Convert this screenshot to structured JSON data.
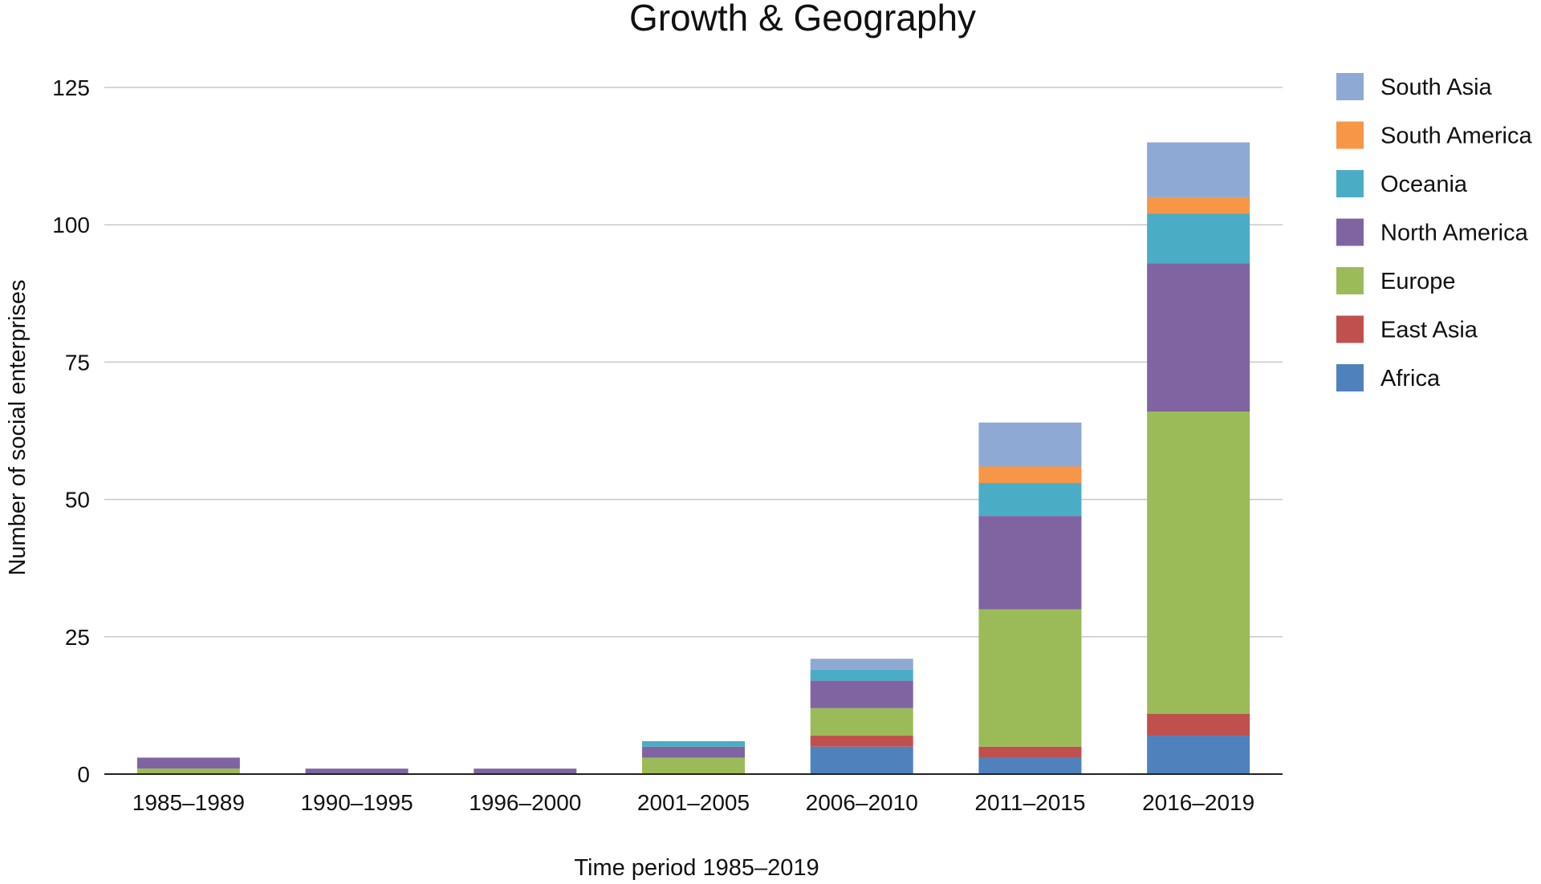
{
  "chart_data": {
    "type": "bar",
    "stacked": true,
    "title": "Growth & Geography",
    "xlabel": "Time period 1985–2019",
    "ylabel": "Number of social enterprises",
    "ylim": [
      0,
      125
    ],
    "yticks": [
      0,
      25,
      50,
      75,
      100,
      125
    ],
    "grid": true,
    "legend_position": "right",
    "categories": [
      "1985–1989",
      "1990–1995",
      "1996–2000",
      "2001–2005",
      "2006–2010",
      "2011–2015",
      "2016–2019"
    ],
    "series": [
      {
        "name": "Africa",
        "color": "#4F81BD",
        "values": [
          0,
          0,
          0,
          0,
          5,
          3,
          7
        ]
      },
      {
        "name": "East Asia",
        "color": "#C0504D",
        "values": [
          0,
          0,
          0,
          0,
          2,
          2,
          4
        ]
      },
      {
        "name": "Europe",
        "color": "#9BBB59",
        "values": [
          1,
          0,
          0,
          3,
          5,
          25,
          55
        ]
      },
      {
        "name": "North America",
        "color": "#8064A2",
        "values": [
          2,
          1,
          1,
          2,
          5,
          17,
          27
        ]
      },
      {
        "name": "Oceania",
        "color": "#4BACC6",
        "values": [
          0,
          0,
          0,
          1,
          2,
          6,
          9
        ]
      },
      {
        "name": "South America",
        "color": "#F79646",
        "values": [
          0,
          0,
          0,
          0,
          0,
          3,
          3
        ]
      },
      {
        "name": "South Asia",
        "color": "#8EA9D3",
        "values": [
          0,
          0,
          0,
          0,
          2,
          8,
          10
        ]
      }
    ],
    "legend_order": [
      "South Asia",
      "South America",
      "Oceania",
      "North America",
      "Europe",
      "East Asia",
      "Africa"
    ]
  }
}
